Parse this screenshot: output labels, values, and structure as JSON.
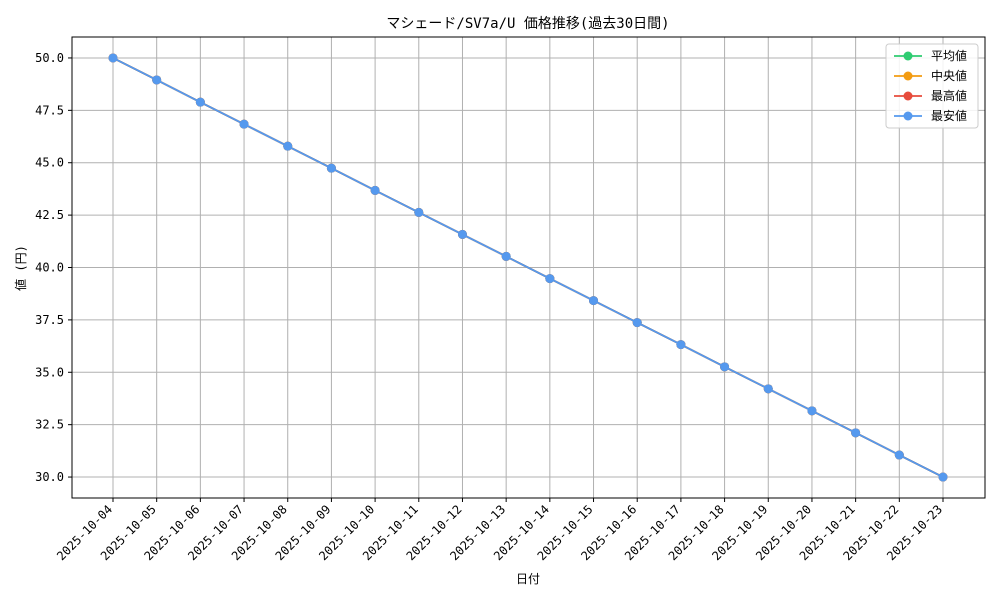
{
  "chart_data": {
    "type": "line",
    "title": "マシェード/SV7a/U 価格推移(過去30日間)",
    "xlabel": "日付",
    "ylabel": "値 (円)",
    "ylim": [
      29.0,
      51.0
    ],
    "yticks": [
      "30.0",
      "32.5",
      "35.0",
      "37.5",
      "40.0",
      "42.5",
      "45.0",
      "47.5",
      "50.0"
    ],
    "grid": true,
    "legend_position": "top-right",
    "x": [
      "2025-10-04",
      "2025-10-05",
      "2025-10-06",
      "2025-10-07",
      "2025-10-08",
      "2025-10-09",
      "2025-10-10",
      "2025-10-11",
      "2025-10-12",
      "2025-10-13",
      "2025-10-14",
      "2025-10-15",
      "2025-10-16",
      "2025-10-17",
      "2025-10-18",
      "2025-10-19",
      "2025-10-20",
      "2025-10-21",
      "2025-10-22",
      "2025-10-23"
    ],
    "series": [
      {
        "name": "平均値",
        "color": "#2ecc71",
        "values": [
          50.0,
          48.95,
          47.89,
          46.84,
          45.79,
          44.74,
          43.68,
          42.63,
          41.58,
          40.53,
          39.47,
          38.42,
          37.37,
          36.32,
          35.26,
          34.21,
          33.16,
          32.11,
          31.05,
          30.0
        ]
      },
      {
        "name": "中央値",
        "color": "#f39c12",
        "values": [
          50.0,
          48.95,
          47.89,
          46.84,
          45.79,
          44.74,
          43.68,
          42.63,
          41.58,
          40.53,
          39.47,
          38.42,
          37.37,
          36.32,
          35.26,
          34.21,
          33.16,
          32.11,
          31.05,
          30.0
        ]
      },
      {
        "name": "最高値",
        "color": "#e74c3c",
        "values": [
          50.0,
          48.95,
          47.89,
          46.84,
          45.79,
          44.74,
          43.68,
          42.63,
          41.58,
          40.53,
          39.47,
          38.42,
          37.37,
          36.32,
          35.26,
          34.21,
          33.16,
          32.11,
          31.05,
          30.0
        ]
      },
      {
        "name": "最安値",
        "color": "#5599ee",
        "values": [
          50.0,
          48.95,
          47.89,
          46.84,
          45.79,
          44.74,
          43.68,
          42.63,
          41.58,
          40.53,
          39.47,
          38.42,
          37.37,
          36.32,
          35.26,
          34.21,
          33.16,
          32.11,
          31.05,
          30.0
        ]
      }
    ]
  }
}
